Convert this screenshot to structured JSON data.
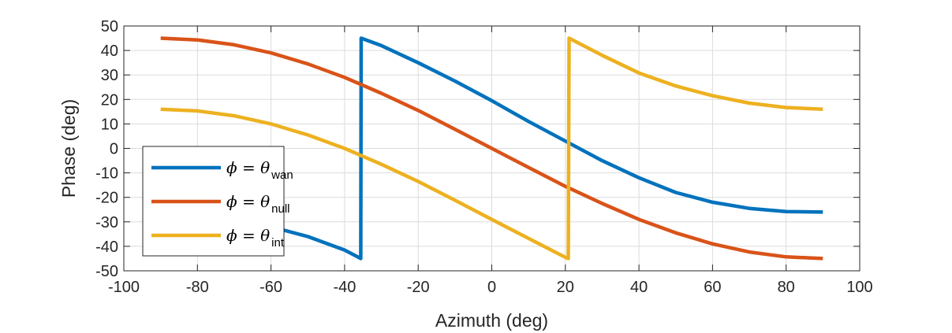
{
  "chart_data": {
    "type": "line",
    "title": "",
    "xlabel": "Azimuth (deg)",
    "ylabel": "Phase (deg)",
    "xlim": [
      -100,
      100
    ],
    "ylim": [
      -50,
      50
    ],
    "xticks": [
      -100,
      -80,
      -60,
      -40,
      -20,
      0,
      20,
      40,
      60,
      80,
      100
    ],
    "yticks": [
      -50,
      -40,
      -30,
      -20,
      -10,
      0,
      10,
      20,
      30,
      40,
      50
    ],
    "grid": true,
    "legend_position": "bottom-left",
    "series": [
      {
        "name": "wan",
        "legend_prefix": "ϕ = θ",
        "legend_sub": "wan",
        "color": "#0072BD",
        "x": [
          -90,
          -80,
          -70,
          -60,
          -50,
          -40,
          -35.6,
          -35.5,
          -30,
          -20,
          -10,
          0,
          10,
          20,
          30,
          40,
          50,
          60,
          70,
          80,
          90
        ],
        "y": [
          -25,
          -26.5,
          -29,
          -32,
          -36,
          -41.5,
          -45,
          45,
          42,
          35,
          27.5,
          19.5,
          11,
          3,
          -5,
          -12,
          -18,
          -22,
          -24.5,
          -25.8,
          -26
        ]
      },
      {
        "name": "null",
        "legend_prefix": "ϕ = θ",
        "legend_sub": "null",
        "color": "#D95319",
        "x": [
          -90,
          -80,
          -70,
          -60,
          -50,
          -40,
          -30,
          -20,
          -10,
          0,
          10,
          20,
          30,
          40,
          50,
          60,
          70,
          80,
          90
        ],
        "y": [
          45,
          44.3,
          42.3,
          39,
          34.5,
          29,
          22.5,
          15.5,
          7.8,
          0,
          -7.8,
          -15.5,
          -22.5,
          -29,
          -34.5,
          -39,
          -42.3,
          -44.3,
          -45
        ]
      },
      {
        "name": "int",
        "legend_prefix": "ϕ = θ",
        "legend_sub": "int",
        "color": "#EDB120",
        "x": [
          -90,
          -80,
          -70,
          -60,
          -50,
          -40,
          -30,
          -20,
          -10,
          0,
          10,
          20,
          20.8,
          21,
          30,
          40,
          50,
          60,
          70,
          80,
          90
        ],
        "y": [
          16,
          15.3,
          13.3,
          10,
          5.5,
          0,
          -6.5,
          -13.5,
          -21.2,
          -29,
          -36.8,
          -44.5,
          -45,
          45,
          38,
          30.8,
          25.5,
          21.5,
          18.5,
          16.7,
          16
        ]
      }
    ]
  }
}
